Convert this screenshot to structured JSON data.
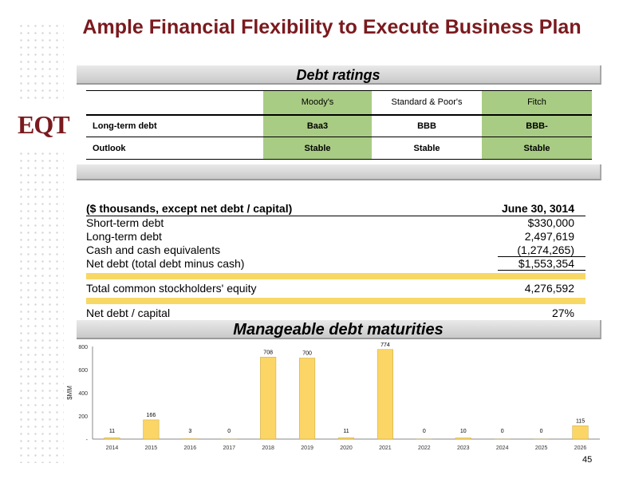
{
  "title": "Ample Financial Flexibility to Execute Business Plan",
  "logo": "EQT",
  "page_number": "45",
  "colors": {
    "title": "#7a1a1e",
    "rating_highlight": "#a9cc84",
    "band": "#f8d865",
    "bar": "#fbd566"
  },
  "debt_ratings": {
    "banner": "Debt ratings",
    "columns": [
      "Moody's",
      "Standard & Poor's",
      "Fitch"
    ],
    "rows": [
      {
        "label": "Long-term debt",
        "values": [
          "Baa3",
          "BBB",
          "BBB-"
        ]
      },
      {
        "label": "Outlook",
        "values": [
          "Stable",
          "Stable",
          "Stable"
        ]
      }
    ]
  },
  "financials": {
    "header_label": "($ thousands, except net debt / capital)",
    "header_date": "June 30, 3014",
    "rows": [
      {
        "label": "Short-term debt",
        "value": "$330,000"
      },
      {
        "label": "Long-term debt",
        "value": "2,497,619"
      },
      {
        "label": "Cash and cash equivalents",
        "value": "(1,274,265)"
      },
      {
        "label": "Net debt (total debt minus cash)",
        "value": "$1,553,354"
      },
      {
        "label": "Total common stockholders' equity",
        "value": "4,276,592"
      },
      {
        "label": "Net debt / capital",
        "value": "27%"
      }
    ]
  },
  "maturities_banner": "Manageable debt maturities",
  "chart_data": {
    "type": "bar",
    "categories": [
      "2014",
      "2015",
      "2016",
      "2017",
      "2018",
      "2019",
      "2020",
      "2021",
      "2022",
      "2023",
      "2024",
      "2025",
      "2026"
    ],
    "values": [
      11,
      166,
      3,
      0,
      708,
      700,
      11,
      774,
      0,
      10,
      0,
      0,
      115
    ],
    "ylabel": "$MM",
    "ylim": [
      0,
      800
    ],
    "yticks": [
      "-",
      "200",
      "400",
      "600",
      "800"
    ],
    "grid": false
  }
}
